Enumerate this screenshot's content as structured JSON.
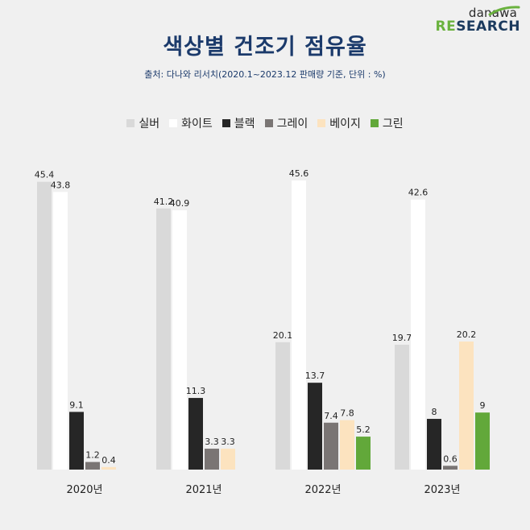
{
  "logo": {
    "top": "danawa",
    "research_accent": "RE",
    "research_rest": "SEARCH"
  },
  "title": "색상별 건조기 점유율",
  "source": "출처: 다나와 리서치(2020.1~2023.12 판매량 기준, 단위 : %)",
  "chart_data": {
    "type": "bar",
    "title": "색상별 건조기 점유율",
    "unit": "%",
    "categories": [
      "2020년",
      "2021년",
      "2022년",
      "2023년"
    ],
    "series": [
      {
        "name": "실버",
        "color": "#d9d9d9",
        "values": [
          45.4,
          41.2,
          20.1,
          19.7
        ]
      },
      {
        "name": "화이트",
        "color": "#ffffff",
        "values": [
          43.8,
          40.9,
          45.6,
          42.6
        ]
      },
      {
        "name": "블랙",
        "color": "#262626",
        "values": [
          9.1,
          11.3,
          13.7,
          8
        ]
      },
      {
        "name": "그레이",
        "color": "#7a7574",
        "values": [
          1.2,
          3.3,
          7.4,
          0.6
        ]
      },
      {
        "name": "베이지",
        "color": "#fce3bf",
        "values": [
          0.4,
          3.3,
          7.8,
          20.2
        ]
      },
      {
        "name": "그린",
        "color": "#62a83a",
        "values": [
          null,
          null,
          5.2,
          9
        ]
      }
    ],
    "ylim": [
      0,
      50
    ],
    "legend_position": "top-center",
    "grid": false
  }
}
